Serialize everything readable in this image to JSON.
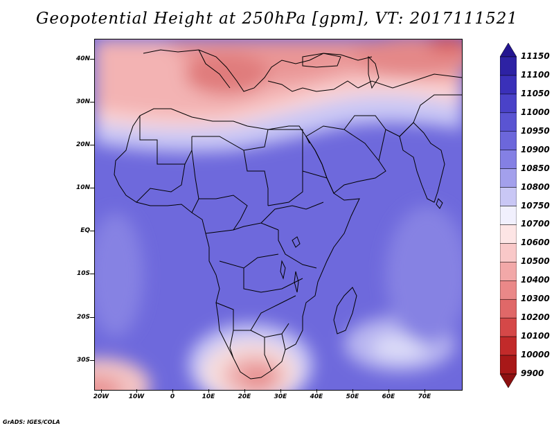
{
  "title": "Geopotential Height at 250hPa [gpm], VT: 2017111521",
  "credit": "GrADS: IGES/COLA",
  "lat_labels": [
    "40N",
    "30N",
    "20N",
    "10N",
    "EQ",
    "10S",
    "20S",
    "30S"
  ],
  "lon_labels": [
    "20W",
    "10W",
    "0",
    "10E",
    "20E",
    "30E",
    "40E",
    "50E",
    "60E",
    "70E"
  ],
  "colorbar": {
    "labels": [
      "11150",
      "11100",
      "11050",
      "11000",
      "10950",
      "10900",
      "10850",
      "10800",
      "10750",
      "10700",
      "10600",
      "10500",
      "10400",
      "10300",
      "10200",
      "10100",
      "10000",
      "9900"
    ],
    "colors": [
      "#231590",
      "#2d22a4",
      "#3a30b9",
      "#4a42c8",
      "#5a54d2",
      "#6c67db",
      "#8480e4",
      "#a3a0ec",
      "#c9c7f5",
      "#f1f0fd",
      "#fde5e5",
      "#f9c8c8",
      "#f2a8a8",
      "#ea8888",
      "#e06868",
      "#d54848",
      "#c22a2a",
      "#a81818",
      "#8c1010"
    ]
  },
  "chart_data": {
    "type": "heatmap",
    "variable": "Geopotential Height at 250hPa",
    "units": "gpm",
    "valid_time": "2017111521",
    "lon_range": [
      "20W",
      "80E"
    ],
    "lat_range": [
      "37S",
      "45N"
    ],
    "levels": [
      9900,
      10000,
      10100,
      10200,
      10300,
      10400,
      10500,
      10600,
      10700,
      10750,
      10800,
      10850,
      10900,
      10950,
      11000,
      11050,
      11100,
      11150
    ],
    "features": {
      "tropics_value_approx": 10900,
      "north_africa_mediterranean_approx": 10500,
      "southern_africa_ridge_approx": 10600,
      "southern_indian_ocean_high_approx": 10800
    }
  }
}
